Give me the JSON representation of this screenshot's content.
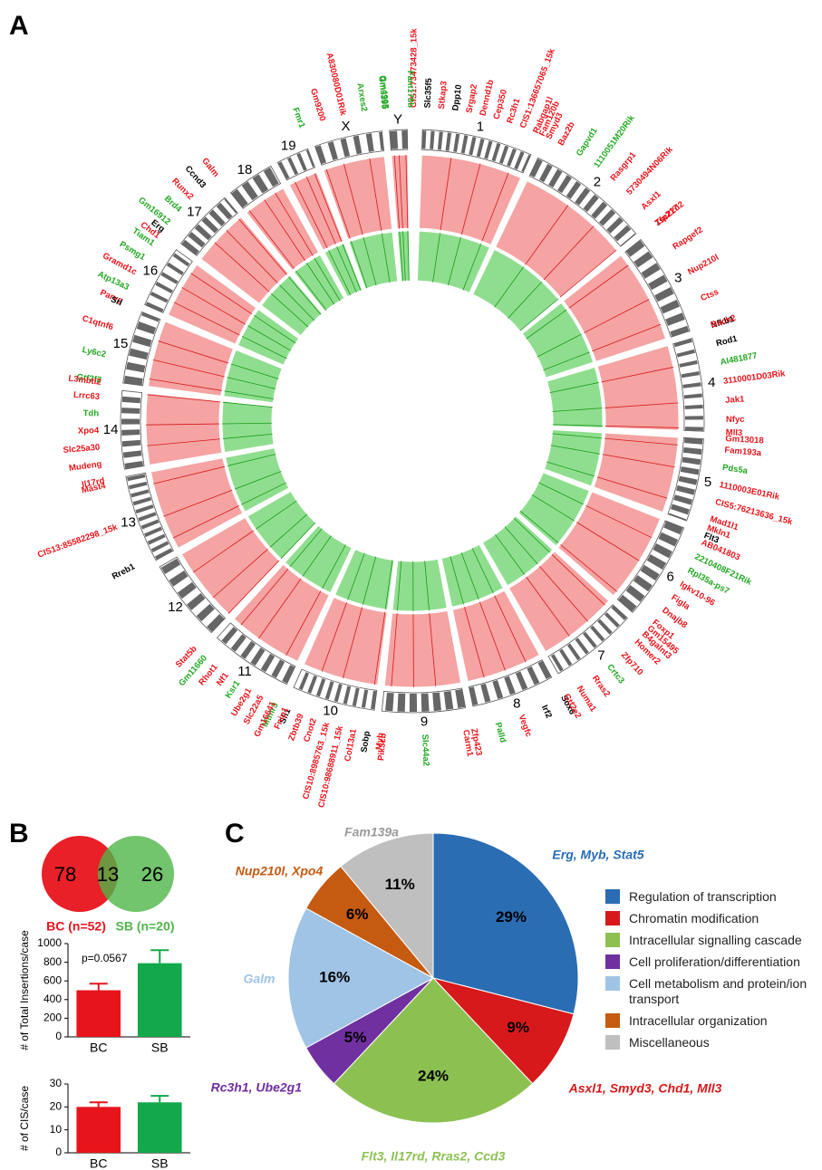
{
  "panel_labels": [
    "A",
    "B",
    "C"
  ],
  "circos": {
    "chromosomes": [
      {
        "name": "1",
        "genes": [
          {
            "name": "CIS1:73473428_15k",
            "color": "#e8141b"
          },
          {
            "name": "Slc35f5",
            "color": "#000000"
          },
          {
            "name": "Stkap3",
            "color": "#e8141b"
          },
          {
            "name": "Dpp10",
            "color": "#000000"
          },
          {
            "name": "Srgap2",
            "color": "#e8141b"
          },
          {
            "name": "Dennd1b",
            "color": "#e8141b"
          },
          {
            "name": "Cep350",
            "color": "#e8141b"
          },
          {
            "name": "Rc3h1",
            "color": "#e8141b"
          },
          {
            "name": "CIS1:136657065_15k",
            "color": "#e8141b"
          },
          {
            "name": "Rabgap1l",
            "color": "#e8141b"
          },
          {
            "name": "Smyd3",
            "color": "#e8141b"
          }
        ]
      },
      {
        "name": "2",
        "genes": [
          {
            "name": "Fam120b",
            "color": "#e8141b"
          },
          {
            "name": "Baz2b",
            "color": "#e8141b"
          },
          {
            "name": "Gapvd1",
            "color": "#22a822"
          },
          {
            "name": "1110051M20Rik",
            "color": "#22a822"
          },
          {
            "name": "Rasgrp1",
            "color": "#e8141b"
          },
          {
            "name": "5730494N06Rik",
            "color": "#e8141b"
          },
          {
            "name": "Asxl1",
            "color": "#e8141b"
          },
          {
            "name": "Zfp217",
            "color": "#e8141b"
          }
        ]
      },
      {
        "name": "3",
        "genes": [
          {
            "name": "Tsc22d2",
            "color": "#e8141b"
          },
          {
            "name": "Rapgef2",
            "color": "#e8141b"
          },
          {
            "name": "Nup210l",
            "color": "#e8141b"
          },
          {
            "name": "Ctss",
            "color": "#e8141b"
          },
          {
            "name": "Nfkb1",
            "color": "#000000"
          }
        ]
      },
      {
        "name": "4",
        "genes": [
          {
            "name": "Bach2",
            "color": "#e8141b"
          },
          {
            "name": "Rod1",
            "color": "#000000"
          },
          {
            "name": "AI481877",
            "color": "#22a822"
          },
          {
            "name": "3110001D03Rik",
            "color": "#e8141b"
          },
          {
            "name": "Jak1",
            "color": "#e8141b"
          },
          {
            "name": "Nfyc",
            "color": "#e8141b"
          },
          {
            "name": "Gm13018",
            "color": "#e8141b"
          }
        ]
      },
      {
        "name": "5",
        "genes": [
          {
            "name": "Mll3",
            "color": "#e8141b"
          },
          {
            "name": "Fam193a",
            "color": "#e8141b"
          },
          {
            "name": "Pds5a",
            "color": "#22a822"
          },
          {
            "name": "1110003E01Rik",
            "color": "#e8141b"
          },
          {
            "name": "CIS5:76213636_15k",
            "color": "#e8141b"
          },
          {
            "name": "Mad1l1",
            "color": "#e8141b"
          },
          {
            "name": "Flt3",
            "color": "#000000"
          }
        ]
      },
      {
        "name": "6",
        "genes": [
          {
            "name": "Mkln1",
            "color": "#e8141b"
          },
          {
            "name": "AB041803",
            "color": "#e8141b"
          },
          {
            "name": "2210408F21Rik",
            "color": "#22a822"
          },
          {
            "name": "Rpl35a-ps7",
            "color": "#22a822"
          },
          {
            "name": "Igkv10-96",
            "color": "#e8141b"
          },
          {
            "name": "Figla",
            "color": "#e8141b"
          },
          {
            "name": "Dnajb8",
            "color": "#e8141b"
          },
          {
            "name": "Foxp1",
            "color": "#e8141b"
          },
          {
            "name": "B4galnt3",
            "color": "#e8141b"
          }
        ]
      },
      {
        "name": "7",
        "genes": [
          {
            "name": "Gm15495",
            "color": "#e8141b"
          },
          {
            "name": "Homer2",
            "color": "#e8141b"
          },
          {
            "name": "Zfp710",
            "color": "#e8141b"
          },
          {
            "name": "Crtc3",
            "color": "#22a822"
          },
          {
            "name": "Rras2",
            "color": "#e8141b"
          },
          {
            "name": "Numa1",
            "color": "#e8141b"
          },
          {
            "name": "Sox6",
            "color": "#000000"
          }
        ]
      },
      {
        "name": "8",
        "genes": [
          {
            "name": "Gtf2e2",
            "color": "#e8141b"
          },
          {
            "name": "Irf2",
            "color": "#000000"
          },
          {
            "name": "Vegfc",
            "color": "#e8141b"
          },
          {
            "name": "Palld",
            "color": "#22a822"
          },
          {
            "name": "Zfp423",
            "color": "#e8141b"
          }
        ]
      },
      {
        "name": "9",
        "genes": [
          {
            "name": "Carm1",
            "color": "#e8141b"
          },
          {
            "name": "Slc44a2",
            "color": "#22a822"
          },
          {
            "name": "Pik3cb",
            "color": "#e8141b"
          }
        ]
      },
      {
        "name": "10",
        "genes": [
          {
            "name": "Myb",
            "color": "#e8141b"
          },
          {
            "name": "Sobp",
            "color": "#000000"
          },
          {
            "name": "Col13a1",
            "color": "#e8141b"
          },
          {
            "name": "CIS10:98688911_15k",
            "color": "#e8141b"
          },
          {
            "name": "CIS10:8985763_15k",
            "color": "#e8141b"
          },
          {
            "name": "Cnot2",
            "color": "#e8141b"
          },
          {
            "name": "Zbtb39",
            "color": "#e8141b"
          },
          {
            "name": "Sfi1",
            "color": "#000000"
          },
          {
            "name": "Mtmr3",
            "color": "#22a822"
          }
        ]
      },
      {
        "name": "11",
        "genes": [
          {
            "name": "Fnip1",
            "color": "#e8141b"
          },
          {
            "name": "Gm16641",
            "color": "#e8141b"
          },
          {
            "name": "Slc22a5",
            "color": "#e8141b"
          },
          {
            "name": "Ube2g1",
            "color": "#e8141b"
          },
          {
            "name": "Ksr1",
            "color": "#22a822"
          },
          {
            "name": "Nf1",
            "color": "#e8141b"
          },
          {
            "name": "Rhot1",
            "color": "#e8141b"
          },
          {
            "name": "Gm11660",
            "color": "#22a822"
          },
          {
            "name": "Stat5b",
            "color": "#e8141b"
          }
        ]
      },
      {
        "name": "12",
        "genes": []
      },
      {
        "name": "13",
        "genes": [
          {
            "name": "Rreb1",
            "color": "#000000"
          },
          {
            "name": "CIS13:85582298_15k",
            "color": "#e8141b"
          },
          {
            "name": "Mast4",
            "color": "#e8141b"
          }
        ]
      },
      {
        "name": "14",
        "genes": [
          {
            "name": "Il17rd",
            "color": "#e8141b"
          },
          {
            "name": "Mudeng",
            "color": "#e8141b"
          },
          {
            "name": "Slc25a30",
            "color": "#e8141b"
          },
          {
            "name": "Xpo4",
            "color": "#e8141b"
          },
          {
            "name": "Tdh",
            "color": "#22a822"
          },
          {
            "name": "Lrrc63",
            "color": "#e8141b"
          },
          {
            "name": "Gtf2f2",
            "color": "#22a822"
          }
        ]
      },
      {
        "name": "15",
        "genes": [
          {
            "name": "L3mbtl2",
            "color": "#e8141b"
          },
          {
            "name": "Ly6c2",
            "color": "#22a822"
          },
          {
            "name": "C1qtnf6",
            "color": "#e8141b"
          },
          {
            "name": "Parvg",
            "color": "#e8141b"
          }
        ]
      },
      {
        "name": "16",
        "genes": [
          {
            "name": "Srl",
            "color": "#000000"
          },
          {
            "name": "Atp13a3",
            "color": "#22a822"
          },
          {
            "name": "Gramd1c",
            "color": "#e8141b"
          },
          {
            "name": "Psmg1",
            "color": "#22a822"
          },
          {
            "name": "Tiam1",
            "color": "#22a822"
          },
          {
            "name": "Erg",
            "color": "#000000"
          }
        ]
      },
      {
        "name": "17",
        "genes": [
          {
            "name": "Chd1",
            "color": "#e8141b"
          },
          {
            "name": "Gm16912",
            "color": "#22a822"
          },
          {
            "name": "Brd4",
            "color": "#22a822"
          },
          {
            "name": "Runx2",
            "color": "#e8141b"
          },
          {
            "name": "Ccnd3",
            "color": "#000000"
          },
          {
            "name": "Galm",
            "color": "#e8141b"
          }
        ]
      },
      {
        "name": "18",
        "genes": []
      },
      {
        "name": "19",
        "genes": []
      },
      {
        "name": "X",
        "genes": [
          {
            "name": "Fmr1",
            "color": "#22a822"
          },
          {
            "name": "Gm9200",
            "color": "#e8141b"
          },
          {
            "name": "A830080D01Rik",
            "color": "#e8141b"
          },
          {
            "name": "Arxes2",
            "color": "#22a822"
          },
          {
            "name": "Gm4995",
            "color": "#22a822"
          }
        ]
      },
      {
        "name": "Y",
        "genes": [
          {
            "name": "Gm3395",
            "color": "#22a822"
          },
          {
            "name": "Fam178b",
            "color": "#22a822"
          }
        ]
      }
    ]
  },
  "venn": {
    "sets": [
      {
        "name": "BC (n=52)",
        "color": "#e8141b",
        "only": 78
      },
      {
        "name": "SB (n=20)",
        "color": "#4fb548",
        "only": 26
      }
    ],
    "overlap": 13
  },
  "chart_data": [
    {
      "type": "bar",
      "ylabel": "# of Total Insertions/case",
      "annotation": "p=0.0567",
      "categories": [
        "BC",
        "SB"
      ],
      "values": [
        500,
        790
      ],
      "errors": [
        70,
        140
      ],
      "colors": [
        "#e8141b",
        "#12a84b"
      ],
      "ylim": [
        0,
        1000
      ],
      "yticks": [
        0,
        200,
        400,
        600,
        800,
        1000
      ]
    },
    {
      "type": "bar",
      "ylabel": "# of CIS/case",
      "categories": [
        "BC",
        "SB"
      ],
      "values": [
        20,
        22
      ],
      "errors": [
        2,
        2.8
      ],
      "colors": [
        "#e8141b",
        "#12a84b"
      ],
      "ylim": [
        0,
        30
      ],
      "yticks": [
        0,
        10,
        20,
        30
      ]
    },
    {
      "type": "pie",
      "categories": [
        "Regulation of transcription",
        "Chromatin modification",
        "Intracellular signalling cascade",
        "Cell proliferation/differentiation",
        "Cell metabolism and protein/ion transport",
        "Intracellular organization",
        "Miscellaneous"
      ],
      "values": [
        29,
        9,
        24,
        5,
        16,
        6,
        11
      ],
      "value_labels": [
        "29%",
        "9%",
        "24%",
        "5%",
        "16%",
        "6%",
        "11%"
      ],
      "slice_labels": [
        "Erg, Myb, Stat5",
        "Asxl1, Smyd3, Chd1, Mll3",
        "Flt3, Il17rd, Rras2, Ccd3",
        "Rc3h1, Ube2g1",
        "Galm",
        "Nup210l, Xpo4",
        "Fam139a"
      ],
      "colors": [
        "#2a6db3",
        "#d7191c",
        "#8cc152",
        "#7030a0",
        "#a0c4e6",
        "#c55a11",
        "#bfbfbf"
      ]
    }
  ]
}
